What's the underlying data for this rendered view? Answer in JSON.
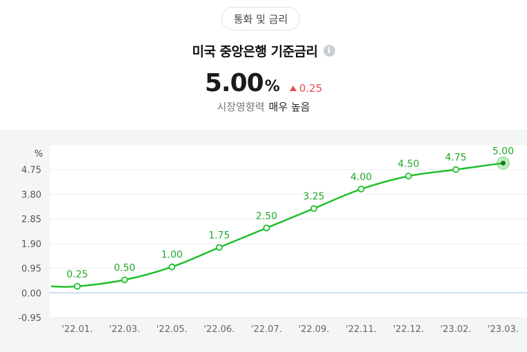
{
  "category_label": "통화 및 금리",
  "title": "미국 중앙은행 기준금리",
  "info_icon": "info-icon",
  "current": {
    "value": "5.00",
    "unit": "%",
    "change": "0.25",
    "direction": "up"
  },
  "impact": {
    "label": "시장영향력",
    "level": "매우 높음"
  },
  "colors": {
    "line": "#1fbf2a",
    "up": "#e94b4b",
    "panel": "#f4f5f7"
  },
  "chart_data": {
    "type": "line",
    "y_unit": "%",
    "ylim": [
      -0.95,
      5.7
    ],
    "y_ticks": [
      {
        "v": 4.75,
        "label": "4.75"
      },
      {
        "v": 3.8,
        "label": "3.80"
      },
      {
        "v": 2.85,
        "label": "2.85"
      },
      {
        "v": 1.9,
        "label": "1.90"
      },
      {
        "v": 0.95,
        "label": "0.95"
      },
      {
        "v": 0.0,
        "label": "0.00"
      },
      {
        "v": -0.95,
        "label": "-0.95"
      }
    ],
    "x_ticks": [
      "'22.01.",
      "'22.03.",
      "'22.05.",
      "'22.06.",
      "'22.07.",
      "'22.09.",
      "'22.11.",
      "'22.12.",
      "'23.02.",
      "'23.03."
    ],
    "start_value": 0.25,
    "points": [
      {
        "x": "'22.01.",
        "y": 0.25,
        "label": "0.25"
      },
      {
        "x": "'22.03.",
        "y": 0.5,
        "label": "0.50"
      },
      {
        "x": "'22.05.",
        "y": 1.0,
        "label": "1.00"
      },
      {
        "x": "'22.06.",
        "y": 1.75,
        "label": "1.75"
      },
      {
        "x": "'22.07.",
        "y": 2.5,
        "label": "2.50"
      },
      {
        "x": "'22.09.",
        "y": 3.25,
        "label": "3.25"
      },
      {
        "x": "'22.11.",
        "y": 4.0,
        "label": "4.00"
      },
      {
        "x": "'22.12.",
        "y": 4.5,
        "label": "4.50"
      },
      {
        "x": "'23.02.",
        "y": 4.75,
        "label": "4.75"
      },
      {
        "x": "'23.03.",
        "y": 5.0,
        "label": "5.00"
      }
    ],
    "grid": true,
    "legend": "none"
  }
}
